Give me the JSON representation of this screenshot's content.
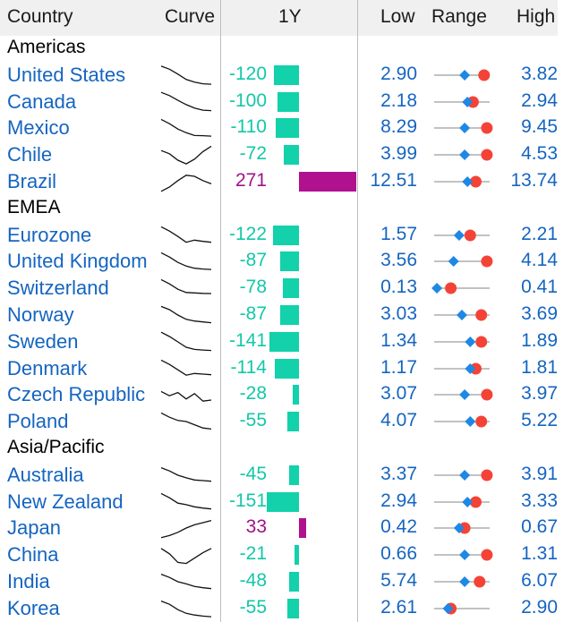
{
  "header": {
    "country": "Country",
    "curve": "Curve",
    "one_year": "1Y",
    "low": "Low",
    "range": "Range",
    "high": "High"
  },
  "colors": {
    "negative": "#12d1ab",
    "positive": "#b0118f",
    "name": "#1565c0",
    "range_current": "#f44336",
    "range_previous": "#1e88e5"
  },
  "groups": [
    {
      "label": "Americas",
      "rows": [
        {
          "name": "United States",
          "change": "-120",
          "change_value": -120,
          "low": "2.90",
          "high": "3.82",
          "curve": [
            0.08,
            0.22,
            0.45,
            0.7,
            0.82,
            0.9,
            0.92
          ],
          "range_prev": 0.55,
          "range_cur": 0.9
        },
        {
          "name": "Canada",
          "change": "-100",
          "change_value": -100,
          "low": "2.18",
          "high": "2.94",
          "curve": [
            0.05,
            0.2,
            0.42,
            0.62,
            0.78,
            0.88,
            0.9
          ],
          "range_prev": 0.6,
          "range_cur": 0.7
        },
        {
          "name": "Mexico",
          "change": "-110",
          "change_value": -110,
          "low": "8.29",
          "high": "9.45",
          "curve": [
            0.1,
            0.3,
            0.55,
            0.72,
            0.85,
            0.86,
            0.88
          ],
          "range_prev": 0.55,
          "range_cur": 0.95
        },
        {
          "name": "Chile",
          "change": "-72",
          "change_value": -72,
          "low": "3.99",
          "high": "4.53",
          "curve": [
            0.3,
            0.45,
            0.75,
            0.92,
            0.7,
            0.35,
            0.1
          ],
          "range_prev": 0.55,
          "range_cur": 0.95
        },
        {
          "name": "Brazil",
          "change": "271",
          "change_value": 271,
          "low": "12.51",
          "high": "13.74",
          "curve": [
            0.95,
            0.75,
            0.45,
            0.2,
            0.25,
            0.45,
            0.6
          ],
          "range_prev": 0.6,
          "range_cur": 0.75
        }
      ]
    },
    {
      "label": "EMEA",
      "rows": [
        {
          "name": "Eurozone",
          "change": "-122",
          "change_value": -122,
          "low": "1.57",
          "high": "2.21",
          "curve": [
            0.1,
            0.3,
            0.55,
            0.82,
            0.72,
            0.78,
            0.82
          ],
          "range_prev": 0.45,
          "range_cur": 0.65
        },
        {
          "name": "United Kingdom",
          "change": "-87",
          "change_value": -87,
          "low": "3.56",
          "high": "4.14",
          "curve": [
            0.1,
            0.3,
            0.55,
            0.72,
            0.82,
            0.86,
            0.88
          ],
          "range_prev": 0.35,
          "range_cur": 0.95
        },
        {
          "name": "Switzerland",
          "change": "-78",
          "change_value": -78,
          "low": "0.13",
          "high": "0.41",
          "curve": [
            0.1,
            0.3,
            0.55,
            0.7,
            0.72,
            0.74,
            0.75
          ],
          "range_prev": 0.05,
          "range_cur": 0.3
        },
        {
          "name": "Norway",
          "change": "-87",
          "change_value": -87,
          "low": "3.03",
          "high": "3.69",
          "curve": [
            0.1,
            0.25,
            0.5,
            0.7,
            0.78,
            0.82,
            0.86
          ],
          "range_prev": 0.5,
          "range_cur": 0.85
        },
        {
          "name": "Sweden",
          "change": "-141",
          "change_value": -141,
          "low": "1.34",
          "high": "1.89",
          "curve": [
            0.05,
            0.25,
            0.5,
            0.75,
            0.85,
            0.88,
            0.9
          ],
          "range_prev": 0.65,
          "range_cur": 0.85
        },
        {
          "name": "Denmark",
          "change": "-114",
          "change_value": -114,
          "low": "1.17",
          "high": "1.81",
          "curve": [
            0.1,
            0.3,
            0.55,
            0.8,
            0.72,
            0.75,
            0.78
          ],
          "range_prev": 0.65,
          "range_cur": 0.75
        },
        {
          "name": "Czech Republic",
          "change": "-28",
          "change_value": -28,
          "low": "3.07",
          "high": "3.97",
          "curve": [
            0.35,
            0.55,
            0.4,
            0.7,
            0.45,
            0.8,
            0.75
          ],
          "range_prev": 0.55,
          "range_cur": 0.95
        },
        {
          "name": "Poland",
          "change": "-55",
          "change_value": -55,
          "low": "4.07",
          "high": "5.22",
          "curve": [
            0.1,
            0.3,
            0.45,
            0.5,
            0.65,
            0.8,
            0.85
          ],
          "range_prev": 0.65,
          "range_cur": 0.85
        }
      ]
    },
    {
      "label": "Asia/Pacific",
      "rows": [
        {
          "name": "Australia",
          "change": "-45",
          "change_value": -45,
          "low": "3.37",
          "high": "3.91",
          "curve": [
            0.15,
            0.3,
            0.5,
            0.62,
            0.72,
            0.75,
            0.78
          ],
          "range_prev": 0.55,
          "range_cur": 0.95
        },
        {
          "name": "New Zealand",
          "change": "-151",
          "change_value": -151,
          "low": "2.94",
          "high": "3.33",
          "curve": [
            0.1,
            0.3,
            0.55,
            0.62,
            0.72,
            0.78,
            0.82
          ],
          "range_prev": 0.6,
          "range_cur": 0.75
        },
        {
          "name": "Japan",
          "change": "33",
          "change_value": 33,
          "low": "0.42",
          "high": "0.67",
          "curve": [
            0.95,
            0.85,
            0.7,
            0.5,
            0.35,
            0.25,
            0.15
          ],
          "range_prev": 0.45,
          "range_cur": 0.55
        },
        {
          "name": "China",
          "change": "-21",
          "change_value": -21,
          "low": "0.66",
          "high": "1.31",
          "curve": [
            0.2,
            0.45,
            0.85,
            0.9,
            0.65,
            0.4,
            0.2
          ],
          "range_prev": 0.55,
          "range_cur": 0.95
        },
        {
          "name": "India",
          "change": "-48",
          "change_value": -48,
          "low": "5.74",
          "high": "6.07",
          "curve": [
            0.15,
            0.3,
            0.5,
            0.6,
            0.72,
            0.78,
            0.82
          ],
          "range_prev": 0.55,
          "range_cur": 0.82
        },
        {
          "name": "Korea",
          "change": "-55",
          "change_value": -55,
          "low": "2.61",
          "high": "2.90",
          "curve": [
            0.15,
            0.3,
            0.55,
            0.72,
            0.8,
            0.85,
            0.88
          ],
          "range_prev": 0.25,
          "range_cur": 0.3
        }
      ]
    }
  ]
}
